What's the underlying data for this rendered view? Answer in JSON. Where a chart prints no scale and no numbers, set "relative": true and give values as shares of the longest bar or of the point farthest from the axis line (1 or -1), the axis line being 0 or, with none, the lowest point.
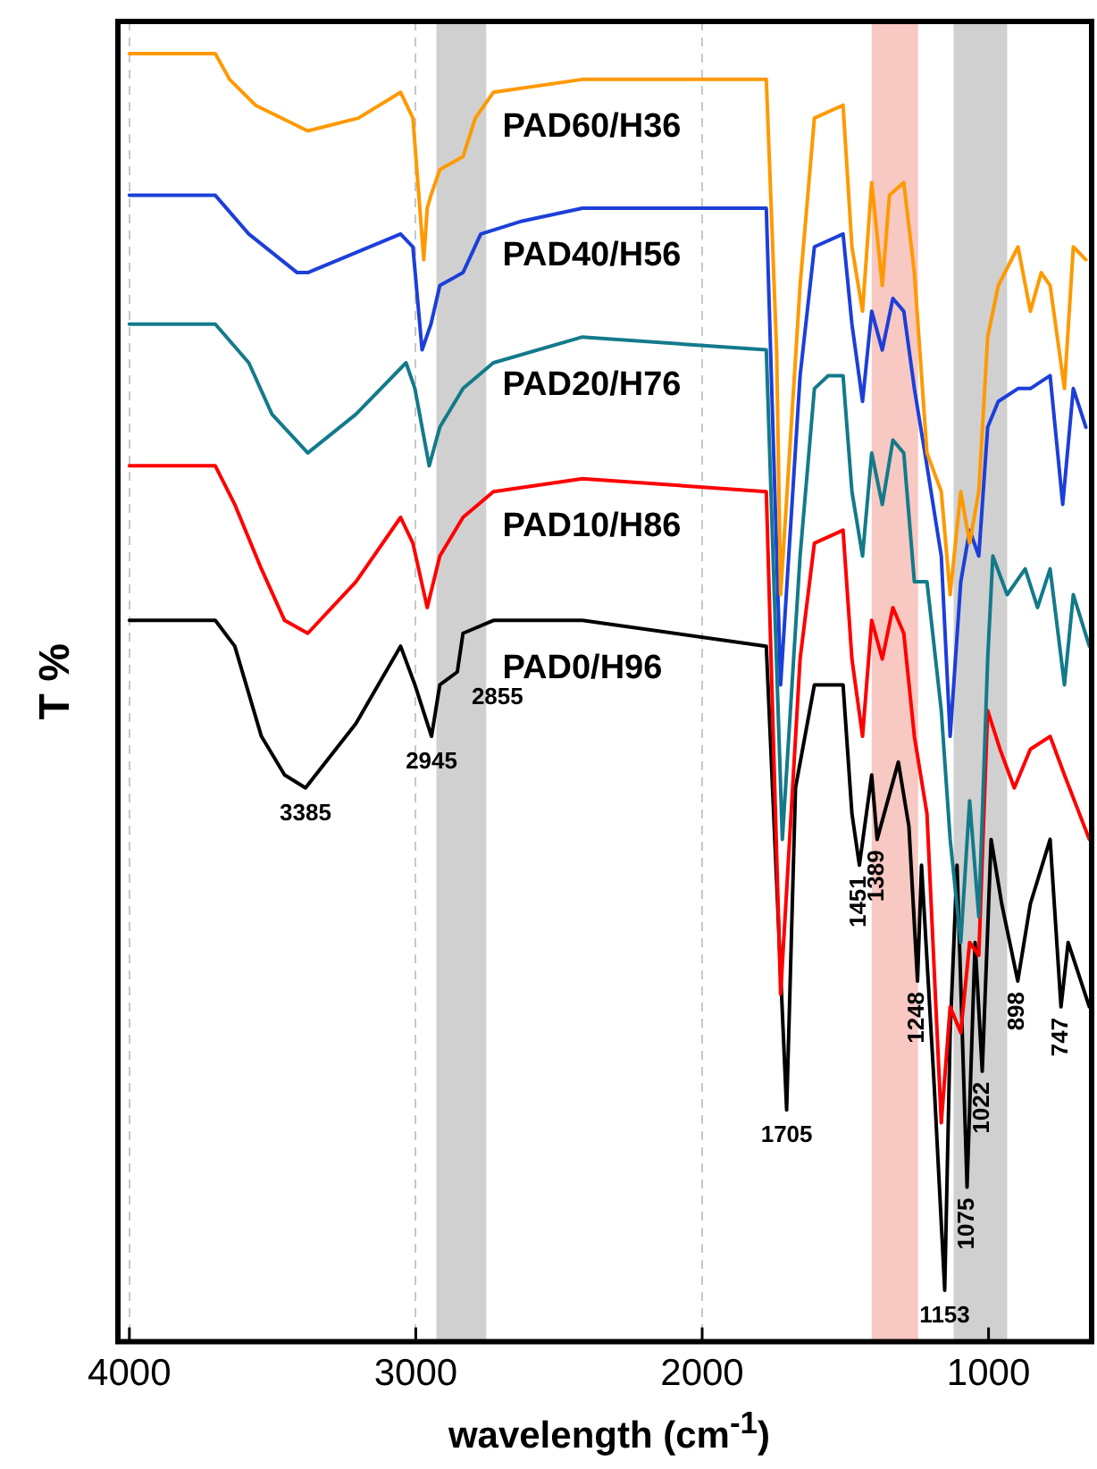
{
  "chart_data": {
    "type": "line",
    "relative": true,
    "xlabel": "wavelength (cm$^{-1}$)",
    "ylabel": "T %",
    "xlim": [
      4040,
      640
    ],
    "xticks": [
      4000,
      3000,
      2000,
      1000
    ],
    "grid": "x",
    "legend": false,
    "tick_labels": "x",
    "marker": "none",
    "line_style": "solid",
    "series": [
      {
        "name": "PAD60/H36",
        "color": "#ff9900",
        "x": [
          4000,
          3700,
          3650,
          3560,
          3377,
          3200,
          3053,
          3010,
          2972,
          2960,
          2947,
          2916,
          2835,
          2792,
          2729,
          2418,
          2000,
          1776,
          1740,
          1726,
          1658,
          1608,
          1508,
          1477,
          1440,
          1408,
          1371,
          1346,
          1296,
          1259,
          1215,
          1165,
          1134,
          1097,
          1066,
          1034,
          1003,
          966,
          897,
          854,
          816,
          785,
          735,
          704,
          660
        ],
        "values": [
          1,
          1,
          0.98,
          0.96,
          0.94,
          0.95,
          0.97,
          0.95,
          0.84,
          0.88,
          0.89,
          0.91,
          0.92,
          0.95,
          0.97,
          0.98,
          0.98,
          0.98,
          0.77,
          0.58,
          0.82,
          0.95,
          0.96,
          0.85,
          0.8,
          0.9,
          0.82,
          0.89,
          0.9,
          0.83,
          0.69,
          0.66,
          0.58,
          0.66,
          0.62,
          0.66,
          0.78,
          0.82,
          0.85,
          0.8,
          0.83,
          0.82,
          0.74,
          0.85,
          0.84
        ]
      },
      {
        "name": "PAD40/H56",
        "color": "#1c3fd8",
        "x": [
          4000,
          3700,
          3583,
          3414,
          3377,
          3053,
          3010,
          2978,
          2947,
          2916,
          2835,
          2773,
          2629,
          2418,
          1776,
          1726,
          1658,
          1608,
          1508,
          1477,
          1440,
          1408,
          1371,
          1334,
          1296,
          1259,
          1215,
          1165,
          1134,
          1097,
          1066,
          1034,
          1003,
          966,
          897,
          854,
          785,
          741,
          704,
          660
        ],
        "values": [
          0.89,
          0.89,
          0.86,
          0.83,
          0.83,
          0.86,
          0.85,
          0.77,
          0.79,
          0.82,
          0.83,
          0.86,
          0.87,
          0.88,
          0.88,
          0.51,
          0.75,
          0.85,
          0.86,
          0.79,
          0.73,
          0.8,
          0.77,
          0.81,
          0.8,
          0.74,
          0.68,
          0.61,
          0.47,
          0.59,
          0.63,
          0.61,
          0.71,
          0.73,
          0.74,
          0.74,
          0.75,
          0.65,
          0.74,
          0.71
        ]
      },
      {
        "name": "PAD20/H76",
        "color": "#137a8a",
        "x": [
          4000,
          3700,
          3583,
          3502,
          3377,
          3209,
          3034,
          3003,
          2953,
          2916,
          2835,
          2729,
          2418,
          1776,
          1720,
          1658,
          1608,
          1560,
          1508,
          1477,
          1440,
          1408,
          1371,
          1334,
          1296,
          1259,
          1215,
          1165,
          1134,
          1097,
          1066,
          1034,
          1003,
          985,
          935,
          872,
          829,
          785,
          735,
          704,
          648
        ],
        "values": [
          0.79,
          0.79,
          0.76,
          0.72,
          0.69,
          0.72,
          0.76,
          0.74,
          0.68,
          0.71,
          0.74,
          0.76,
          0.78,
          0.77,
          0.39,
          0.61,
          0.74,
          0.75,
          0.75,
          0.66,
          0.61,
          0.69,
          0.65,
          0.7,
          0.69,
          0.59,
          0.59,
          0.49,
          0.39,
          0.31,
          0.42,
          0.33,
          0.53,
          0.61,
          0.58,
          0.6,
          0.57,
          0.6,
          0.51,
          0.58,
          0.54
        ]
      },
      {
        "name": "PAD10/H86",
        "color": "#ff0000",
        "x": [
          4000,
          3700,
          3632,
          3539,
          3458,
          3377,
          3209,
          3053,
          3010,
          2960,
          2916,
          2835,
          2729,
          2418,
          1776,
          1726,
          1658,
          1608,
          1508,
          1477,
          1440,
          1408,
          1371,
          1334,
          1296,
          1259,
          1215,
          1165,
          1134,
          1097,
          1066,
          1034,
          1003,
          960,
          910,
          854,
          785,
          735,
          648
        ],
        "values": [
          0.68,
          0.68,
          0.65,
          0.6,
          0.56,
          0.55,
          0.59,
          0.64,
          0.62,
          0.57,
          0.61,
          0.64,
          0.66,
          0.67,
          0.66,
          0.27,
          0.53,
          0.62,
          0.63,
          0.53,
          0.47,
          0.56,
          0.53,
          0.57,
          0.55,
          0.47,
          0.41,
          0.17,
          0.26,
          0.24,
          0.31,
          0.3,
          0.49,
          0.46,
          0.43,
          0.46,
          0.47,
          0.44,
          0.39
        ]
      },
      {
        "name": "PAD0/H96",
        "color": "#000000",
        "x": [
          4000,
          3700,
          3632,
          3539,
          3458,
          3385,
          3209,
          3053,
          3003,
          2945,
          2916,
          2855,
          2835,
          2729,
          2418,
          1776,
          1705,
          1674,
          1608,
          1508,
          1477,
          1451,
          1408,
          1389,
          1315,
          1278,
          1248,
          1234,
          1190,
          1153,
          1134,
          1110,
          1075,
          1047,
          1022,
          991,
          954,
          898,
          854,
          785,
          747,
          722,
          648
        ],
        "values": [
          0.56,
          0.56,
          0.54,
          0.47,
          0.44,
          0.43,
          0.48,
          0.54,
          0.51,
          0.47,
          0.51,
          0.52,
          0.55,
          0.56,
          0.56,
          0.54,
          0.18,
          0.43,
          0.51,
          0.51,
          0.41,
          0.37,
          0.44,
          0.39,
          0.45,
          0.4,
          0.28,
          0.37,
          0.2,
          0.04,
          0.24,
          0.37,
          0.12,
          0.31,
          0.21,
          0.39,
          0.34,
          0.28,
          0.34,
          0.39,
          0.26,
          0.31,
          0.26
        ]
      }
    ],
    "bands": [
      {
        "axis": "x",
        "from": 2928,
        "to": 2754,
        "color": "#d0d0d0"
      },
      {
        "axis": "x",
        "from": 1408,
        "to": 1246,
        "color": "#f8c8c2"
      },
      {
        "axis": "x",
        "from": 1122,
        "to": 935,
        "color": "#d0d0d0"
      }
    ],
    "annotations": [
      {
        "text": "3385",
        "x": 3385,
        "y": 0.43
      },
      {
        "text": "2945",
        "x": 2945,
        "y": 0.47
      },
      {
        "text": "2855",
        "x": 2855,
        "y": 0.52
      },
      {
        "text": "1705",
        "x": 1705,
        "y": 0.18
      },
      {
        "text": "1451",
        "x": 1451,
        "y": 0.37
      },
      {
        "text": "1389",
        "x": 1389,
        "y": 0.39
      },
      {
        "text": "1248",
        "x": 1248,
        "y": 0.28
      },
      {
        "text": "1153",
        "x": 1153,
        "y": 0.04
      },
      {
        "text": "1075",
        "x": 1075,
        "y": 0.12
      },
      {
        "text": "1022",
        "x": 1022,
        "y": 0.21
      },
      {
        "text": "898",
        "x": 898,
        "y": 0.28
      },
      {
        "text": "747",
        "x": 747,
        "y": 0.26
      }
    ]
  }
}
